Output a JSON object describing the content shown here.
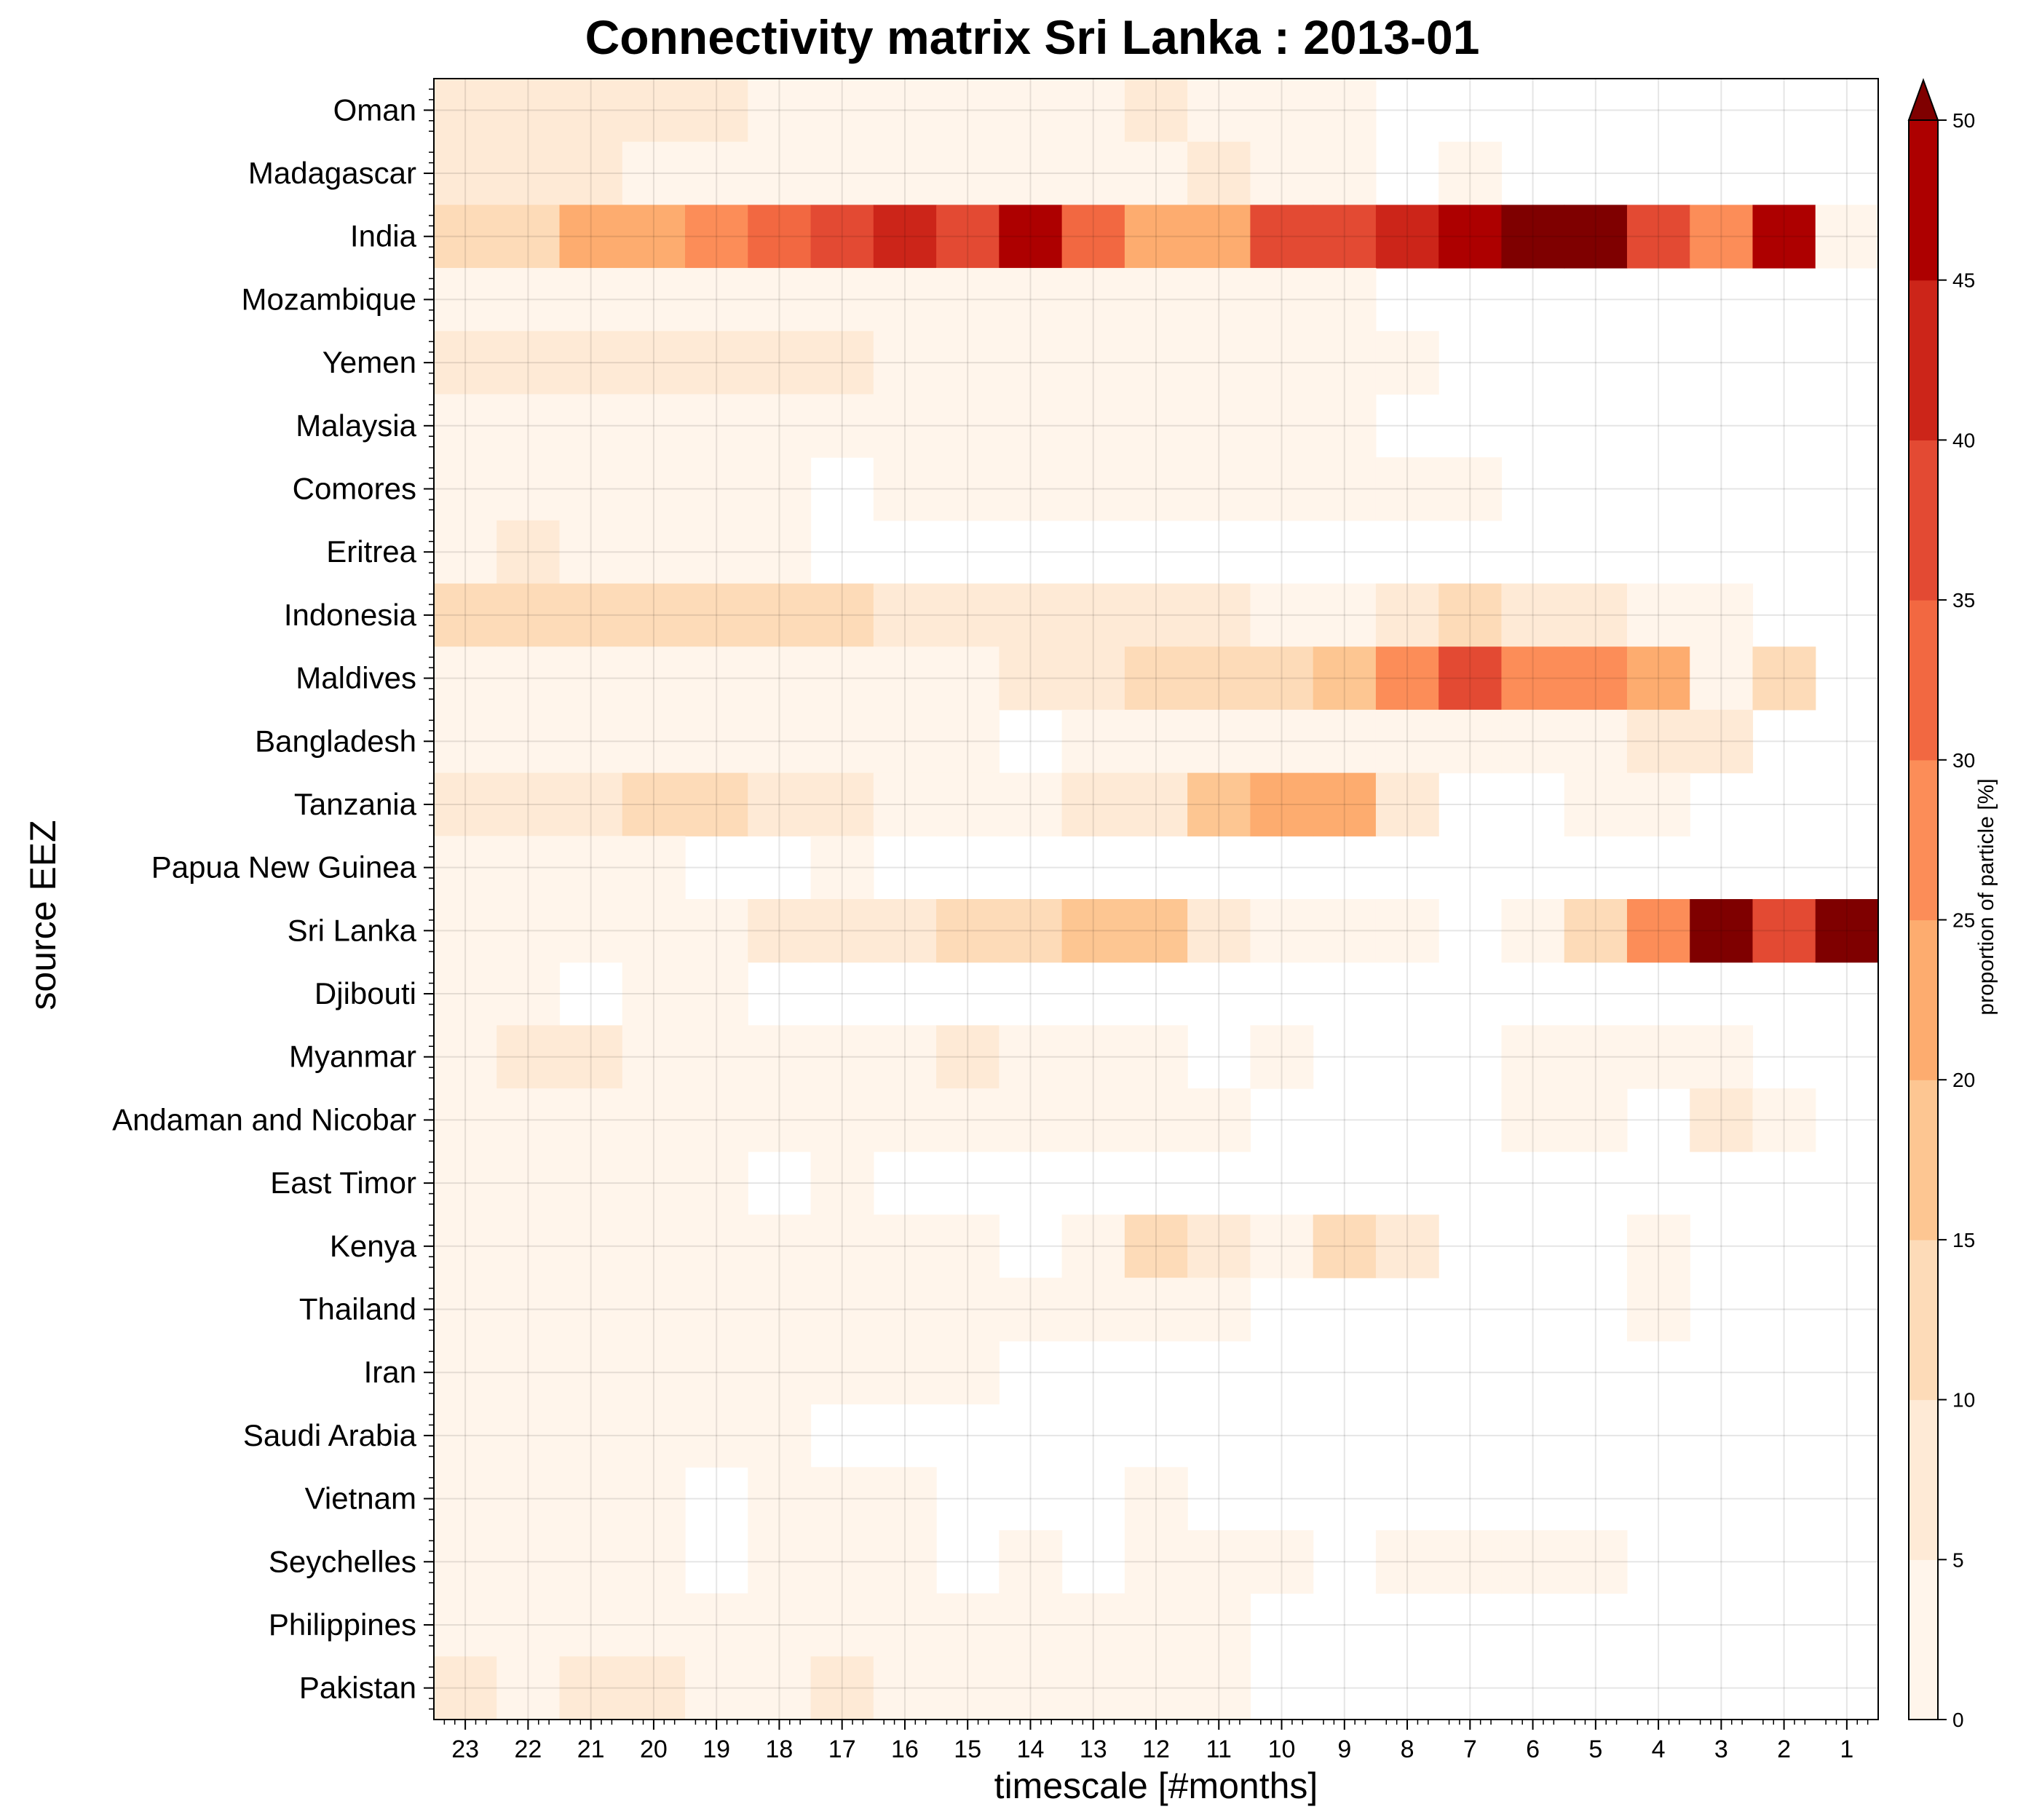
{
  "chart_data": {
    "type": "heatmap",
    "title": "Connectivity matrix Sri Lanka : 2013-01",
    "xlabel": "timescale [#months]",
    "ylabel": "source EEZ",
    "colorbar_label": "proportion of particle [%]",
    "colorbar_ticks": [
      0,
      5,
      10,
      15,
      20,
      25,
      30,
      35,
      40,
      45,
      50
    ],
    "colorbar_extend": "max",
    "color_levels": [
      "#fff5eb",
      "#feead6",
      "#fddbb8",
      "#fdc692",
      "#fdac6f",
      "#fc8d58",
      "#f26841",
      "#e34a33",
      "#cc2519",
      "#ad0000",
      "#7f0000"
    ],
    "grid": true,
    "x": [
      "23",
      "22",
      "21",
      "20",
      "19",
      "18",
      "17",
      "16",
      "15",
      "14",
      "13",
      "12",
      "11",
      "10",
      "9",
      "8",
      "7",
      "6",
      "5",
      "4",
      "3",
      "2",
      "1"
    ],
    "y": [
      "Oman",
      "Madagascar",
      "India",
      "Mozambique",
      "Yemen",
      "Malaysia",
      "Comores",
      "Eritrea",
      "Indonesia",
      "Maldives",
      "Bangladesh",
      "Tanzania",
      "Papua New Guinea",
      "Sri Lanka",
      "Djibouti",
      "Myanmar",
      "Andaman and Nicobar",
      "East Timor",
      "Kenya",
      "Thailand",
      "Iran",
      "Saudi Arabia",
      "Vietnam",
      "Seychelles",
      "Philippines",
      "Pakistan"
    ],
    "values": [
      [
        6,
        6,
        6,
        6,
        6,
        2,
        2,
        2,
        2,
        2,
        2,
        6,
        2,
        2,
        2,
        null,
        null,
        null,
        null,
        null,
        null,
        null,
        null
      ],
      [
        6,
        6,
        6,
        2,
        2,
        2,
        2,
        2,
        2,
        2,
        2,
        2,
        6,
        2,
        2,
        null,
        2,
        null,
        null,
        null,
        null,
        null,
        null
      ],
      [
        13,
        13,
        21,
        21,
        27,
        32,
        38,
        42,
        38,
        48,
        32,
        21,
        21,
        38,
        38,
        42,
        48,
        52,
        52,
        38,
        27,
        48,
        2
      ],
      [
        2,
        2,
        2,
        2,
        2,
        2,
        2,
        2,
        2,
        2,
        2,
        2,
        2,
        2,
        2,
        null,
        null,
        null,
        null,
        null,
        null,
        null,
        null
      ],
      [
        6,
        6,
        6,
        6,
        6,
        6,
        6,
        2,
        2,
        2,
        2,
        2,
        2,
        2,
        2,
        2,
        null,
        null,
        null,
        null,
        null,
        null,
        null
      ],
      [
        2,
        2,
        2,
        2,
        2,
        2,
        2,
        2,
        2,
        2,
        2,
        2,
        2,
        2,
        2,
        null,
        null,
        null,
        null,
        null,
        null,
        null,
        null
      ],
      [
        2,
        2,
        2,
        2,
        2,
        2,
        null,
        2,
        2,
        2,
        2,
        2,
        2,
        2,
        2,
        2,
        2,
        null,
        null,
        null,
        null,
        null,
        null
      ],
      [
        2,
        6,
        2,
        2,
        2,
        2,
        null,
        null,
        null,
        null,
        null,
        null,
        null,
        null,
        null,
        null,
        null,
        null,
        null,
        null,
        null,
        null,
        null
      ],
      [
        13,
        13,
        13,
        13,
        13,
        13,
        13,
        6,
        6,
        6,
        6,
        6,
        6,
        2,
        2,
        6,
        13,
        6,
        6,
        2,
        2,
        null,
        null
      ],
      [
        2,
        2,
        2,
        2,
        2,
        2,
        2,
        2,
        2,
        6,
        6,
        13,
        13,
        13,
        17,
        27,
        37,
        27,
        27,
        21,
        2,
        13,
        null
      ],
      [
        2,
        2,
        2,
        2,
        2,
        2,
        2,
        2,
        2,
        null,
        2,
        2,
        2,
        2,
        2,
        2,
        2,
        2,
        2,
        6,
        6,
        null,
        null
      ],
      [
        6,
        6,
        6,
        13,
        13,
        6,
        6,
        2,
        2,
        2,
        6,
        6,
        17,
        22,
        22,
        6,
        null,
        null,
        2,
        2,
        null,
        null,
        null
      ],
      [
        2,
        2,
        2,
        2,
        null,
        null,
        2,
        null,
        null,
        null,
        null,
        null,
        null,
        null,
        null,
        null,
        null,
        null,
        null,
        null,
        null,
        null,
        null
      ],
      [
        2,
        2,
        2,
        2,
        2,
        6,
        6,
        6,
        13,
        13,
        17,
        17,
        6,
        2,
        2,
        2,
        null,
        2,
        13,
        27,
        52,
        38,
        52
      ],
      [
        2,
        2,
        null,
        2,
        2,
        null,
        null,
        null,
        null,
        null,
        null,
        null,
        null,
        null,
        null,
        null,
        null,
        null,
        null,
        null,
        null,
        null,
        null
      ],
      [
        2,
        6,
        6,
        2,
        2,
        2,
        2,
        2,
        6,
        2,
        2,
        2,
        null,
        2,
        null,
        null,
        null,
        2,
        2,
        2,
        2,
        null,
        null
      ],
      [
        2,
        2,
        2,
        2,
        2,
        2,
        2,
        2,
        2,
        2,
        2,
        2,
        2,
        null,
        null,
        null,
        null,
        2,
        2,
        null,
        6,
        2,
        null
      ],
      [
        2,
        2,
        2,
        2,
        2,
        null,
        2,
        null,
        null,
        null,
        null,
        null,
        null,
        null,
        null,
        null,
        null,
        null,
        null,
        null,
        null,
        null,
        null
      ],
      [
        2,
        2,
        2,
        2,
        2,
        2,
        2,
        2,
        2,
        null,
        2,
        13,
        6,
        2,
        13,
        6,
        null,
        null,
        null,
        2,
        null,
        null,
        null
      ],
      [
        2,
        2,
        2,
        2,
        2,
        2,
        2,
        2,
        2,
        2,
        2,
        2,
        2,
        null,
        null,
        null,
        null,
        null,
        null,
        2,
        null,
        null,
        null
      ],
      [
        2,
        2,
        2,
        2,
        2,
        2,
        2,
        2,
        2,
        null,
        null,
        null,
        null,
        null,
        null,
        null,
        null,
        null,
        null,
        null,
        null,
        null,
        null
      ],
      [
        2,
        2,
        2,
        2,
        2,
        2,
        null,
        null,
        null,
        null,
        null,
        null,
        null,
        null,
        null,
        null,
        null,
        null,
        null,
        null,
        null,
        null,
        null
      ],
      [
        2,
        2,
        2,
        2,
        null,
        2,
        2,
        2,
        null,
        null,
        null,
        2,
        null,
        null,
        null,
        null,
        null,
        null,
        null,
        null,
        null,
        null,
        null
      ],
      [
        2,
        2,
        2,
        2,
        null,
        2,
        2,
        2,
        null,
        2,
        null,
        2,
        2,
        2,
        null,
        2,
        2,
        2,
        2,
        null,
        null,
        null,
        null
      ],
      [
        2,
        2,
        2,
        2,
        2,
        2,
        2,
        2,
        2,
        2,
        2,
        2,
        2,
        null,
        null,
        null,
        null,
        null,
        null,
        null,
        null,
        null,
        null
      ],
      [
        6,
        2,
        6,
        6,
        2,
        2,
        6,
        2,
        2,
        2,
        2,
        2,
        2,
        null,
        null,
        null,
        null,
        null,
        null,
        null,
        null,
        null,
        null
      ]
    ]
  }
}
